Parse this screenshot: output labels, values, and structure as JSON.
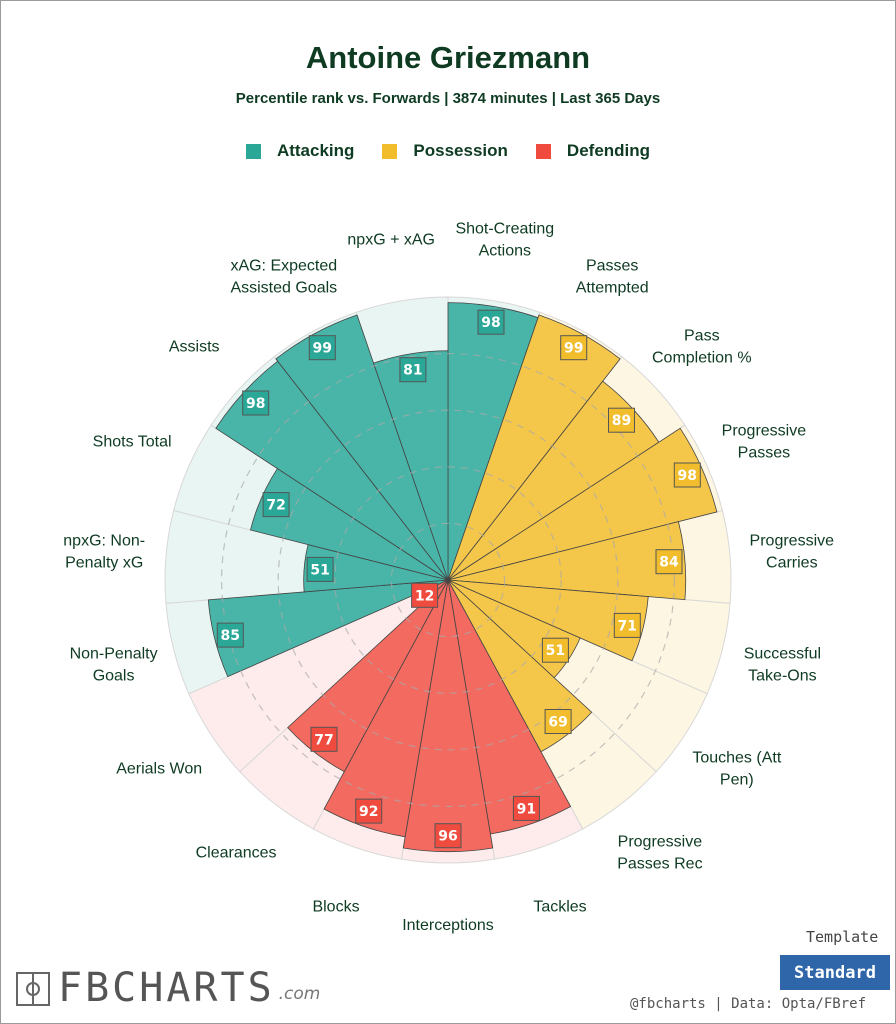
{
  "header": {
    "title": "Antoine Griezmann",
    "subtitle": "Percentile rank vs. Forwards | 3874 minutes | Last 365 Days"
  },
  "legend": [
    {
      "label": "Attacking",
      "color": "#2aa797"
    },
    {
      "label": "Possession",
      "color": "#f1bd2c"
    },
    {
      "label": "Defending",
      "color": "#ef4b3f"
    }
  ],
  "chart_data": {
    "type": "polar-bar",
    "range": [
      0,
      100
    ],
    "grid": "dashed rings",
    "legend": "top",
    "title": "Antoine Griezmann",
    "subtitle": "Percentile rank vs. Forwards | 3874 minutes | Last 365 Days",
    "params": [
      {
        "label": [
          "Shot-Creating",
          "Actions"
        ],
        "value": 98,
        "group": "Attacking"
      },
      {
        "label": [
          "Passes",
          "Attempted"
        ],
        "value": 99,
        "group": "Possession"
      },
      {
        "label": [
          "Pass",
          "Completion %"
        ],
        "value": 89,
        "group": "Possession"
      },
      {
        "label": [
          "Progressive",
          "Passes"
        ],
        "value": 98,
        "group": "Possession"
      },
      {
        "label": [
          "Progressive",
          "Carries"
        ],
        "value": 84,
        "group": "Possession"
      },
      {
        "label": [
          "Successful",
          "Take-Ons"
        ],
        "value": 71,
        "group": "Possession"
      },
      {
        "label": [
          "Touches (Att",
          "Pen)"
        ],
        "value": 51,
        "group": "Possession"
      },
      {
        "label": [
          "Progressive",
          "Passes Rec"
        ],
        "value": 69,
        "group": "Possession"
      },
      {
        "label": [
          "Tackles"
        ],
        "value": 91,
        "group": "Defending"
      },
      {
        "label": [
          "Interceptions"
        ],
        "value": 96,
        "group": "Defending"
      },
      {
        "label": [
          "Blocks"
        ],
        "value": 92,
        "group": "Defending"
      },
      {
        "label": [
          "Clearances"
        ],
        "value": 77,
        "group": "Defending"
      },
      {
        "label": [
          "Aerials Won"
        ],
        "value": 12,
        "group": "Defending"
      },
      {
        "label": [
          "Non-Penalty",
          "Goals"
        ],
        "value": 85,
        "group": "Attacking"
      },
      {
        "label": [
          "npxG: Non-",
          "Penalty xG"
        ],
        "value": 51,
        "group": "Attacking"
      },
      {
        "label": [
          "Shots Total"
        ],
        "value": 72,
        "group": "Attacking"
      },
      {
        "label": [
          "Assists"
        ],
        "value": 98,
        "group": "Attacking"
      },
      {
        "label": [
          "xAG: Expected",
          "Assisted Goals"
        ],
        "value": 99,
        "group": "Attacking"
      },
      {
        "label": [
          "npxG + xAG"
        ],
        "value": 81,
        "group": "Attacking"
      }
    ]
  },
  "colors": {
    "Attacking": {
      "fill": "#48b5a8",
      "bg": "#e8f5f2",
      "box": "#2aa797"
    },
    "Possession": {
      "fill": "#f4c64a",
      "bg": "#fdf6e2",
      "box": "#f1bd2c"
    },
    "Defending": {
      "fill": "#f26a60",
      "bg": "#fdeceb",
      "box": "#ef4b3f"
    }
  },
  "footer": {
    "template_label": "Template",
    "template_value": "Standard",
    "credits": "@fbcharts | Data: Opta/FBref",
    "logo_text": "FBCHARTS",
    "logo_domain": ".com"
  }
}
